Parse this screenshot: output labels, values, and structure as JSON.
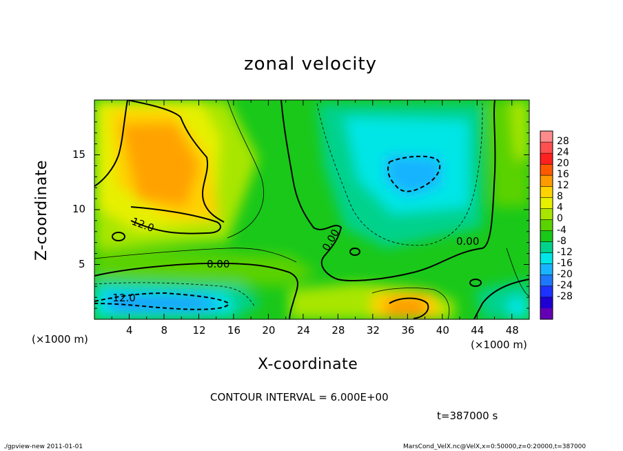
{
  "chart_data": {
    "type": "heatmap",
    "title": "zonal velocity",
    "xlabel": "X-coordinate",
    "ylabel": "Z-coordinate",
    "x_unit": "(×1000 m)",
    "y_unit": "(×1000 m)",
    "xlim": [
      0,
      50
    ],
    "ylim": [
      0,
      20
    ],
    "x_ticks": [
      4,
      8,
      12,
      16,
      20,
      24,
      28,
      32,
      36,
      40,
      44,
      48
    ],
    "y_ticks": [
      5,
      10,
      15
    ],
    "colorbar": {
      "labels": [
        28,
        24,
        20,
        16,
        12,
        8,
        4,
        0,
        -4,
        -8,
        -12,
        -16,
        -20,
        -24,
        -28
      ],
      "colors": [
        "#ff8c8c",
        "#ff5050",
        "#ff2020",
        "#ff5a00",
        "#ff9a00",
        "#ffd200",
        "#e6f000",
        "#a8e600",
        "#5ad200",
        "#19c819",
        "#00d28c",
        "#00e6e6",
        "#19b4ff",
        "#1e78ff",
        "#1e32ff",
        "#1e00d2",
        "#6400b4"
      ]
    },
    "contour_interval_text": "CONTOUR INTERVAL = 6.000E+00",
    "contour_labels": [
      "12.0",
      "0.00",
      "-12.0",
      "0.00",
      "0.00"
    ],
    "time_text": "t=387000 s"
  },
  "footer": {
    "left": "./gpview-new   2011-01-01",
    "right": "MarsCond_VelX.nc@VelX,x=0:50000,z=0:20000,t=387000"
  }
}
